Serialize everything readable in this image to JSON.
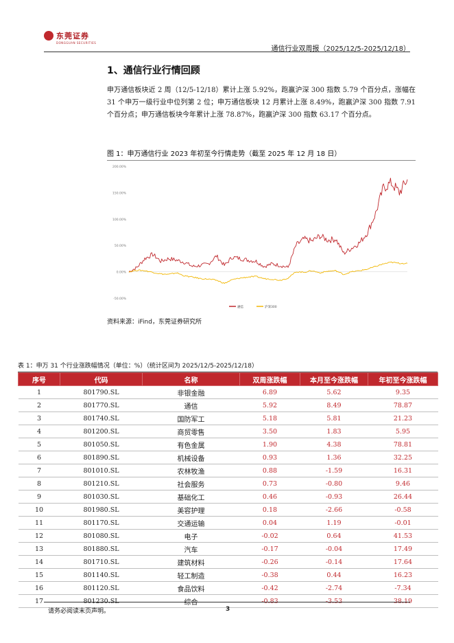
{
  "header": {
    "logo_text": "东莞证券",
    "logo_sub": "DONGGUAN SECURITIES",
    "title": "通信行业双周报（2025/12/5-2025/12/18）"
  },
  "section": {
    "title": "1、通信行业行情回顾",
    "paragraph": "申万通信板块近 2 周（12/5-12/18）累计上涨 5.92%，跑赢沪深 300 指数 5.79 个百分点，涨幅在 31 个申万一级行业中位列第 2 位；申万通信板块 12 月累计上涨 8.49%，跑赢沪深 300 指数 7.91 个百分点；申万通信板块今年累计上涨 78.87%，跑赢沪深 300 指数 63.17 个百分点。"
  },
  "figure": {
    "caption": "图 1：申万通信行业 2023 年初至今行情走势（截至 2025 年 12 月 18 日）",
    "source": "资料来源：iFind，东莞证券研究所"
  },
  "chart_data": {
    "type": "line",
    "title": "",
    "xlabel": "",
    "ylabel": "",
    "ylim": [
      -50,
      200
    ],
    "yticks": [
      "-50.00%",
      "0.00%",
      "50.00%",
      "100.00%",
      "150.00%",
      "200.00%"
    ],
    "ytick_values": [
      -50,
      0,
      50,
      100,
      150,
      200
    ],
    "grid": false,
    "legend_position": "bottom-center",
    "x_range": [
      "2023-01",
      "2025-12-18"
    ],
    "series": [
      {
        "name": "通信",
        "color": "#c0282d",
        "x": [
          "2023-01",
          "2023-02",
          "2023-03",
          "2023-04",
          "2023-05",
          "2023-06",
          "2023-07",
          "2023-08",
          "2023-09",
          "2023-10",
          "2023-11",
          "2023-12",
          "2024-01",
          "2024-02",
          "2024-03",
          "2024-04",
          "2024-05",
          "2024-06",
          "2024-07",
          "2024-08",
          "2024-09",
          "2024-10",
          "2024-11",
          "2024-12",
          "2025-01",
          "2025-02",
          "2025-03",
          "2025-04",
          "2025-05",
          "2025-06",
          "2025-07",
          "2025-08",
          "2025-09",
          "2025-10",
          "2025-11",
          "2025-12"
        ],
        "values": [
          0,
          8,
          25,
          33,
          20,
          25,
          22,
          18,
          10,
          12,
          15,
          30,
          12,
          28,
          25,
          22,
          20,
          10,
          15,
          12,
          8,
          50,
          62,
          58,
          68,
          60,
          62,
          35,
          45,
          55,
          75,
          110,
          160,
          168,
          150,
          175
        ]
      },
      {
        "name": "沪深300",
        "color": "#f2b705",
        "x": [
          "2023-01",
          "2023-02",
          "2023-03",
          "2023-04",
          "2023-05",
          "2023-06",
          "2023-07",
          "2023-08",
          "2023-09",
          "2023-10",
          "2023-11",
          "2023-12",
          "2024-01",
          "2024-02",
          "2024-03",
          "2024-04",
          "2024-05",
          "2024-06",
          "2024-07",
          "2024-08",
          "2024-09",
          "2024-10",
          "2024-11",
          "2024-12",
          "2025-01",
          "2025-02",
          "2025-03",
          "2025-04",
          "2025-05",
          "2025-06",
          "2025-07",
          "2025-08",
          "2025-09",
          "2025-10",
          "2025-11",
          "2025-12"
        ],
        "values": [
          0,
          3,
          2,
          -1,
          -4,
          -5,
          -2,
          -8,
          -10,
          -13,
          -14,
          -16,
          -22,
          -15,
          -12,
          -10,
          -9,
          -13,
          -14,
          -16,
          -12,
          0,
          -1,
          2,
          -2,
          1,
          2,
          -5,
          0,
          2,
          5,
          10,
          15,
          18,
          16,
          16
        ]
      }
    ]
  },
  "table": {
    "caption": "表 1：申万 31 个行业涨跌幅情况（单位：%）（统计区间为 2025/12/5-2025/12/18）",
    "headers": [
      "序号",
      "代码",
      "名称",
      "双周涨跌幅",
      "本月至今涨跌幅",
      "年初至今涨跌幅"
    ],
    "rows": [
      [
        "1",
        "801790.SL",
        "非银金融",
        "6.89",
        "5.62",
        "9.35"
      ],
      [
        "2",
        "801770.SL",
        "通信",
        "5.92",
        "8.49",
        "78.87"
      ],
      [
        "3",
        "801740.SL",
        "国防军工",
        "5.18",
        "5.81",
        "21.23"
      ],
      [
        "4",
        "801200.SL",
        "商贸零售",
        "3.50",
        "1.83",
        "5.95"
      ],
      [
        "5",
        "801050.SL",
        "有色金属",
        "1.90",
        "4.38",
        "78.81"
      ],
      [
        "6",
        "801890.SL",
        "机械设备",
        "0.93",
        "1.36",
        "32.25"
      ],
      [
        "7",
        "801010.SL",
        "农林牧渔",
        "0.88",
        "-1.59",
        "16.31"
      ],
      [
        "8",
        "801210.SL",
        "社会服务",
        "0.73",
        "-0.80",
        "9.46"
      ],
      [
        "9",
        "801030.SL",
        "基础化工",
        "0.46",
        "-0.93",
        "26.44"
      ],
      [
        "10",
        "801980.SL",
        "美容护理",
        "0.18",
        "-2.66",
        "-0.58"
      ],
      [
        "11",
        "801170.SL",
        "交通运输",
        "0.04",
        "1.19",
        "-0.01"
      ],
      [
        "12",
        "801080.SL",
        "电子",
        "-0.02",
        "0.64",
        "41.53"
      ],
      [
        "13",
        "801880.SL",
        "汽车",
        "-0.17",
        "-0.04",
        "17.49"
      ],
      [
        "14",
        "801710.SL",
        "建筑材料",
        "-0.26",
        "-0.14",
        "17.64"
      ],
      [
        "15",
        "801140.SL",
        "轻工制造",
        "-0.38",
        "0.44",
        "16.23"
      ],
      [
        "16",
        "801120.SL",
        "食品饮料",
        "-0.42",
        "-2.74",
        "-7.34"
      ],
      [
        "17",
        "801230.SL",
        "综合",
        "-0.83",
        "-3.53",
        "38.19"
      ]
    ]
  },
  "footer": {
    "note": "请务必阅读末页声明。",
    "page": "3"
  },
  "colors": {
    "accent": "#c0282d",
    "benchmark": "#f2b705"
  }
}
